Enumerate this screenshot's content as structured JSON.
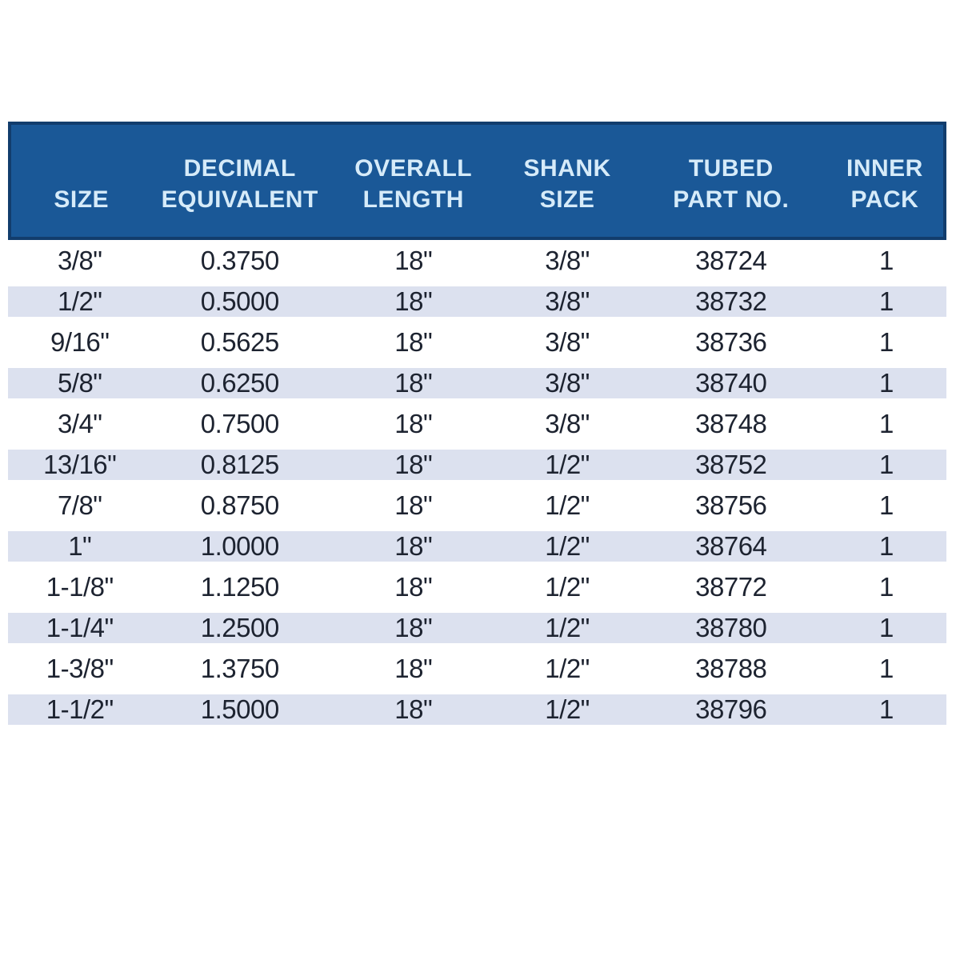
{
  "colors": {
    "header_bg": "#1a5897",
    "header_border": "#123d6d",
    "header_text": "#d6ebf9",
    "row_stripe": "#dce1ef",
    "body_text": "#1d2330",
    "page_bg": "#ffffff"
  },
  "table": {
    "columns": [
      {
        "id": "size",
        "label_lines": [
          "SIZE"
        ]
      },
      {
        "id": "decimal-equivalent",
        "label_lines": [
          "DECIMAL",
          "EQUIVALENT"
        ]
      },
      {
        "id": "overall-length",
        "label_lines": [
          "OVERALL",
          "LENGTH"
        ]
      },
      {
        "id": "shank-size",
        "label_lines": [
          "SHANK",
          "SIZE"
        ]
      },
      {
        "id": "tubed-part-no",
        "label_lines": [
          "TUBED",
          "PART NO."
        ]
      },
      {
        "id": "inner-pack",
        "label_lines": [
          "INNER",
          "PACK"
        ]
      }
    ],
    "rows": [
      [
        "3/8\"",
        "0.3750",
        "18\"",
        "3/8\"",
        "38724",
        "1"
      ],
      [
        "1/2\"",
        "0.5000",
        "18\"",
        "3/8\"",
        "38732",
        "1"
      ],
      [
        "9/16\"",
        "0.5625",
        "18\"",
        "3/8\"",
        "38736",
        "1"
      ],
      [
        "5/8\"",
        "0.6250",
        "18\"",
        "3/8\"",
        "38740",
        "1"
      ],
      [
        "3/4\"",
        "0.7500",
        "18\"",
        "3/8\"",
        "38748",
        "1"
      ],
      [
        "13/16\"",
        "0.8125",
        "18\"",
        "1/2\"",
        "38752",
        "1"
      ],
      [
        "7/8\"",
        "0.8750",
        "18\"",
        "1/2\"",
        "38756",
        "1"
      ],
      [
        "1\"",
        "1.0000",
        "18\"",
        "1/2\"",
        "38764",
        "1"
      ],
      [
        "1-1/8\"",
        "1.1250",
        "18\"",
        "1/2\"",
        "38772",
        "1"
      ],
      [
        "1-1/4\"",
        "1.2500",
        "18\"",
        "1/2\"",
        "38780",
        "1"
      ],
      [
        "1-3/8\"",
        "1.3750",
        "18\"",
        "1/2\"",
        "38788",
        "1"
      ],
      [
        "1-1/2\"",
        "1.5000",
        "18\"",
        "1/2\"",
        "38796",
        "1"
      ]
    ]
  }
}
